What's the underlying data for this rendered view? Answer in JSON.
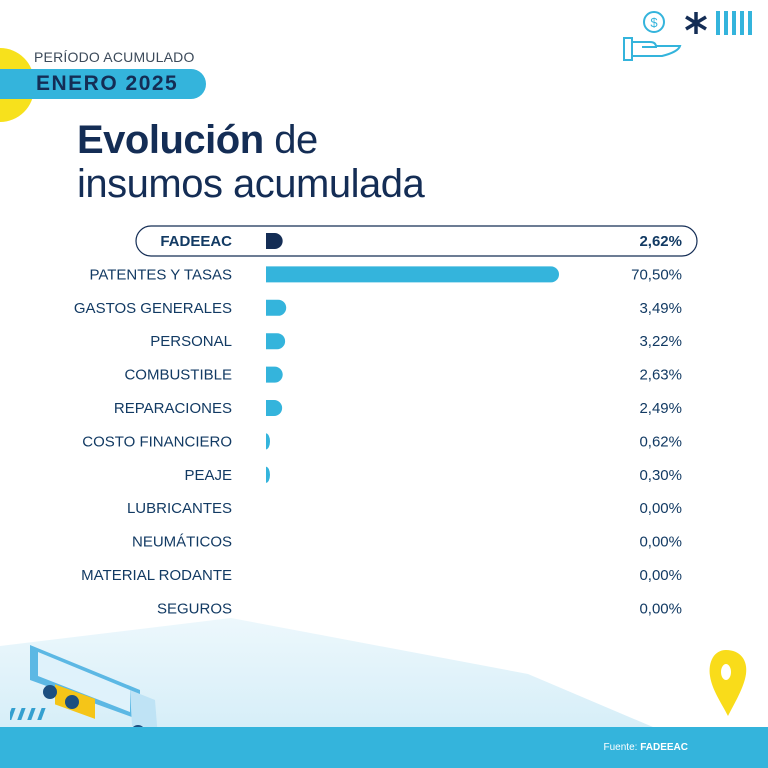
{
  "header": {
    "period_label": "PERÍODO ACUMULADO",
    "period_value": "ENERO 2025"
  },
  "title": {
    "bold": "Evolución",
    "rest_line1": " de",
    "line2": "insumos acumulada"
  },
  "icons": [
    "money-hand-icon",
    "asterisk-icon",
    "stripes-icon",
    "truck-illustration",
    "location-pin-icon"
  ],
  "colors": {
    "highlight_bar": "#142d55",
    "bar": "#34b4dc",
    "text": "#123a63",
    "accent_yellow": "#f7e11c"
  },
  "chart_data": {
    "type": "bar",
    "orientation": "horizontal",
    "title": "Evolución de insumos acumulada",
    "categories": [
      "FADEEAC",
      "PATENTES Y TASAS",
      "GASTOS GENERALES",
      "PERSONAL",
      "COMBUSTIBLE",
      "REPARACIONES",
      "COSTO FINANCIERO",
      "PEAJE",
      "LUBRICANTES",
      "NEUMÁTICOS",
      "MATERIAL RODANTE",
      "SEGUROS"
    ],
    "values": [
      2.62,
      70.5,
      3.49,
      3.22,
      2.63,
      2.49,
      0.62,
      0.3,
      0.0,
      0.0,
      0.0,
      0.0
    ],
    "labels": [
      "2,62%",
      "70,50%",
      "3,49%",
      "3,22%",
      "2,63%",
      "2,49%",
      "0,62%",
      "0,30%",
      "0,00%",
      "0,00%",
      "0,00%",
      "0,00%"
    ],
    "highlighted": "FADEEAC",
    "unit": "%",
    "grid": false
  },
  "footer": {
    "source_label": "Fuente:",
    "source_value": "FADEEAC"
  }
}
